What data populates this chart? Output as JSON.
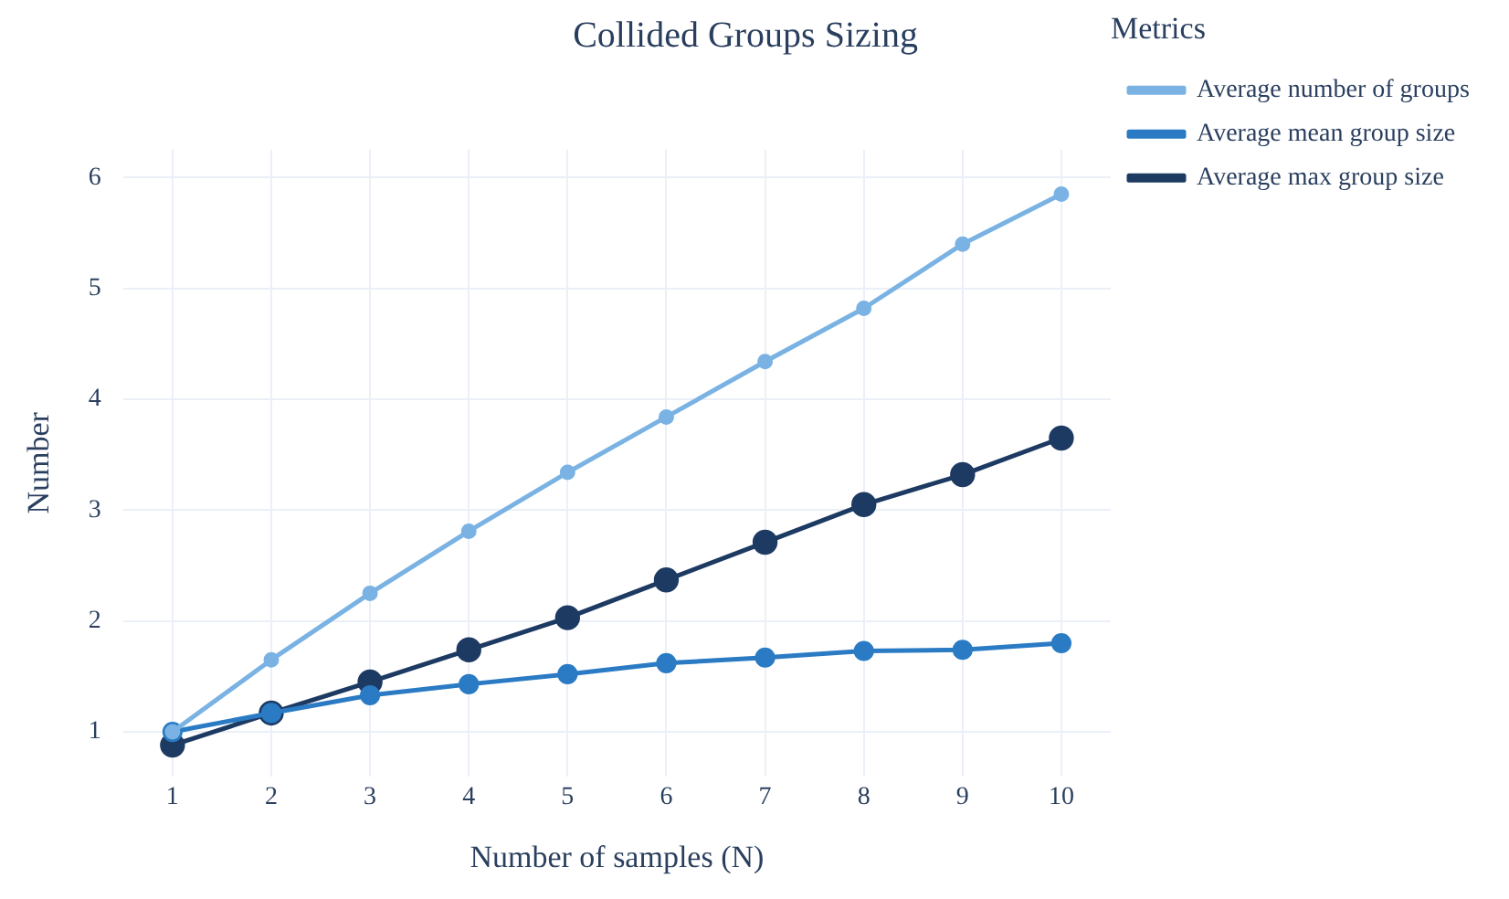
{
  "chart_data": {
    "type": "line",
    "title": "Collided Groups Sizing",
    "xlabel": "Number of samples (N)",
    "ylabel": "Number",
    "legend_title": "Metrics",
    "x": [
      1,
      2,
      3,
      4,
      5,
      6,
      7,
      8,
      9,
      10
    ],
    "xlim": [
      0.5,
      10.5
    ],
    "xticks": [
      1,
      2,
      3,
      4,
      5,
      6,
      7,
      8,
      9,
      10
    ],
    "ylim": [
      0.6,
      6.25
    ],
    "yticks": [
      1,
      2,
      3,
      4,
      5,
      6
    ],
    "grid": true,
    "legend": "right",
    "marker": "circle",
    "line_style": "solid",
    "series": [
      {
        "name": "Average number of groups",
        "color": "#7ab3e3",
        "values": [
          1.0,
          1.65,
          2.25,
          2.81,
          3.34,
          3.84,
          4.34,
          4.82,
          5.4,
          5.85
        ]
      },
      {
        "name": "Average mean group size",
        "color": "#2a7bc4",
        "values": [
          1.0,
          1.17,
          1.33,
          1.43,
          1.52,
          1.62,
          1.67,
          1.73,
          1.74,
          1.8
        ]
      },
      {
        "name": "Average max group size",
        "color": "#1d3a63",
        "values": [
          0.88,
          1.17,
          1.45,
          1.74,
          2.03,
          2.37,
          2.71,
          3.05,
          3.32,
          3.65
        ]
      }
    ]
  }
}
